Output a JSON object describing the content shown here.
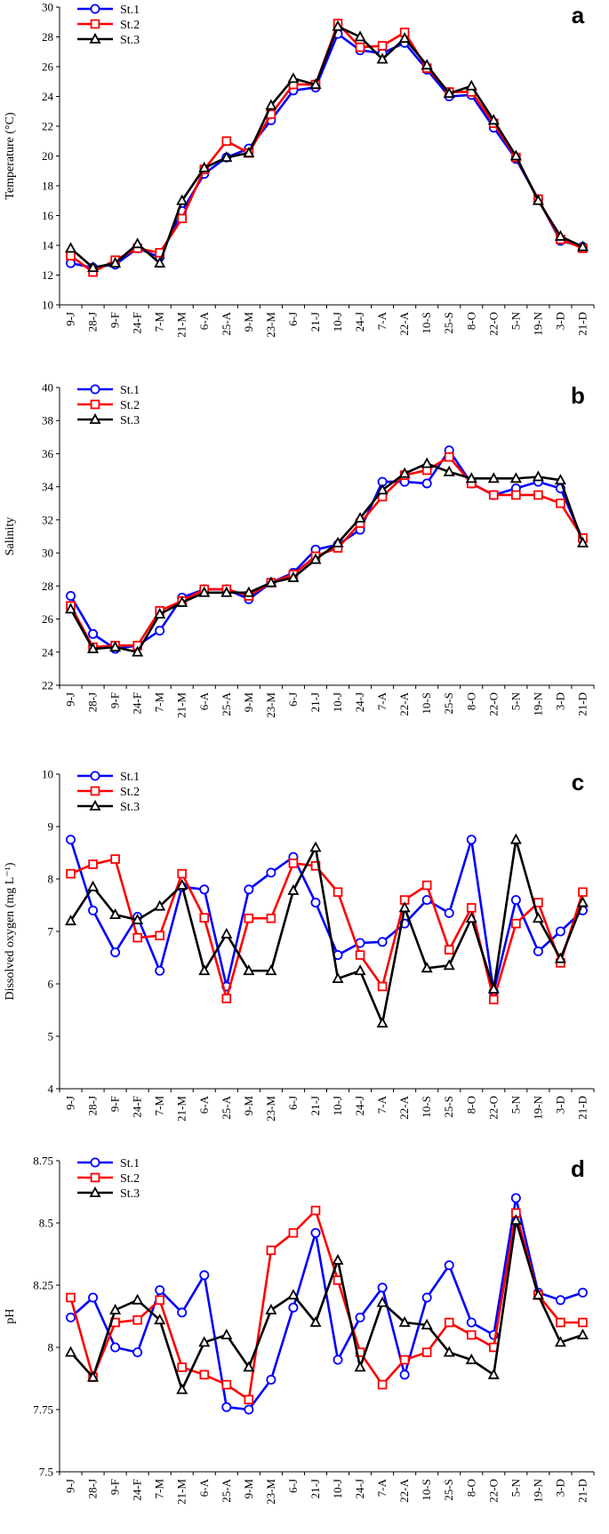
{
  "categories": [
    "9-J",
    "28-J",
    "9-F",
    "24-F",
    "7-M",
    "21-M",
    "6-A",
    "25-A",
    "9-M",
    "23-M",
    "6-J",
    "21-J",
    "10-J",
    "24-J",
    "7-A",
    "22-A",
    "10-S",
    "25-S",
    "8-O",
    "22-O",
    "5-N",
    "19-N",
    "3-D",
    "21-D"
  ],
  "series_styles": [
    {
      "name": "St.1",
      "color": "#0000ff",
      "marker": "circle"
    },
    {
      "name": "St.2",
      "color": "#ff0000",
      "marker": "square"
    },
    {
      "name": "St.3",
      "color": "#000000",
      "marker": "triangle"
    }
  ],
  "chart_data": [
    {
      "type": "line",
      "panel": "a",
      "title": "",
      "xlabel": "",
      "ylabel": "Temperature (°C)",
      "ylim": [
        10,
        30
      ],
      "ytick_labels": [
        "10",
        "12",
        "14",
        "16",
        "18",
        "20",
        "22",
        "24",
        "26",
        "28",
        "30"
      ],
      "legend": "top-left",
      "series": [
        {
          "name": "St.1",
          "values": [
            12.8,
            12.5,
            12.7,
            13.8,
            13.2,
            16.3,
            18.8,
            19.9,
            20.5,
            22.4,
            24.4,
            24.6,
            28.2,
            27.1,
            26.9,
            27.6,
            25.8,
            24.0,
            24.1,
            21.9,
            19.8,
            17.1,
            14.3,
            13.9
          ]
        },
        {
          "name": "St.2",
          "values": [
            13.3,
            12.2,
            13.0,
            13.8,
            13.5,
            15.8,
            19.1,
            21.0,
            20.2,
            22.8,
            24.8,
            24.8,
            28.9,
            27.3,
            27.4,
            28.3,
            25.9,
            24.3,
            24.3,
            22.2,
            19.9,
            17.1,
            14.4,
            13.8
          ]
        },
        {
          "name": "St.3",
          "values": [
            13.8,
            12.5,
            12.8,
            14.1,
            12.8,
            17.0,
            19.2,
            19.9,
            20.2,
            23.4,
            25.2,
            24.8,
            28.7,
            28.0,
            26.5,
            27.9,
            26.1,
            24.2,
            24.7,
            22.4,
            20.0,
            17.0,
            14.6,
            13.9
          ]
        }
      ]
    },
    {
      "type": "line",
      "panel": "b",
      "title": "",
      "xlabel": "",
      "ylabel": "Salinity",
      "ylim": [
        22,
        40
      ],
      "ytick_labels": [
        "22",
        "24",
        "26",
        "28",
        "30",
        "32",
        "34",
        "36",
        "38",
        "40"
      ],
      "legend": "top-left",
      "series": [
        {
          "name": "St.1",
          "values": [
            27.4,
            25.1,
            24.2,
            24.4,
            25.3,
            27.3,
            27.8,
            27.8,
            27.2,
            28.2,
            28.8,
            30.2,
            30.5,
            31.4,
            34.3,
            34.3,
            34.2,
            36.2,
            34.2,
            33.5,
            33.9,
            34.3,
            33.9,
            30.8
          ]
        },
        {
          "name": "St.2",
          "values": [
            26.8,
            24.3,
            24.4,
            24.4,
            26.5,
            27.1,
            27.8,
            27.8,
            27.4,
            28.2,
            28.7,
            29.8,
            30.3,
            31.8,
            33.4,
            34.7,
            35.0,
            35.8,
            34.2,
            33.5,
            33.5,
            33.5,
            33.0,
            30.9
          ]
        },
        {
          "name": "St.3",
          "values": [
            26.6,
            24.2,
            24.3,
            24.0,
            26.3,
            27.0,
            27.6,
            27.6,
            27.6,
            28.2,
            28.5,
            29.6,
            30.6,
            32.1,
            33.8,
            34.8,
            35.4,
            34.9,
            34.5,
            34.5,
            34.5,
            34.6,
            34.4,
            30.6
          ]
        }
      ]
    },
    {
      "type": "line",
      "panel": "c",
      "title": "",
      "xlabel": "",
      "ylabel": "Dissolved oxygen (mg L⁻¹)",
      "ylim": [
        4,
        10
      ],
      "ytick_labels": [
        "4",
        "5",
        "6",
        "7",
        "8",
        "9",
        "10"
      ],
      "legend": "top-left",
      "series": [
        {
          "name": "St.1",
          "values": [
            8.75,
            7.4,
            6.6,
            7.28,
            6.25,
            7.85,
            7.8,
            5.95,
            7.8,
            8.12,
            8.42,
            7.55,
            6.55,
            6.78,
            6.8,
            7.15,
            7.6,
            7.35,
            8.75,
            5.85,
            7.6,
            6.62,
            7.0,
            7.4
          ]
        },
        {
          "name": "St.2",
          "values": [
            8.1,
            8.28,
            8.38,
            6.88,
            6.92,
            8.1,
            7.26,
            5.72,
            7.25,
            7.25,
            8.3,
            8.25,
            7.75,
            6.55,
            5.95,
            7.6,
            7.88,
            6.65,
            7.45,
            5.7,
            7.15,
            7.55,
            6.4,
            7.75
          ]
        },
        {
          "name": "St.3",
          "values": [
            7.2,
            7.85,
            7.32,
            7.22,
            7.48,
            7.88,
            6.25,
            6.95,
            6.25,
            6.25,
            7.78,
            8.6,
            6.1,
            6.25,
            5.25,
            7.45,
            6.3,
            6.35,
            7.25,
            5.9,
            8.75,
            7.25,
            6.48,
            7.55
          ]
        }
      ]
    },
    {
      "type": "line",
      "panel": "d",
      "title": "",
      "xlabel": "",
      "ylabel": "pH",
      "ylim": [
        7.5,
        8.75
      ],
      "ytick_labels": [
        "7.5",
        "7.75",
        "8",
        "8.25",
        "8.5",
        "8.75"
      ],
      "legend": "top-left",
      "series": [
        {
          "name": "St.1",
          "values": [
            8.12,
            8.2,
            8.0,
            7.98,
            8.23,
            8.14,
            8.29,
            7.76,
            7.75,
            7.87,
            8.16,
            8.46,
            7.95,
            8.12,
            8.24,
            7.89,
            8.2,
            8.33,
            8.1,
            8.05,
            8.6,
            8.22,
            8.19,
            8.22
          ]
        },
        {
          "name": "St.2",
          "values": [
            8.2,
            7.88,
            8.1,
            8.11,
            8.19,
            7.92,
            7.89,
            7.85,
            7.79,
            8.39,
            8.46,
            8.55,
            8.27,
            7.98,
            7.85,
            7.95,
            7.98,
            8.1,
            8.05,
            8.0,
            8.54,
            8.21,
            8.1,
            8.1
          ]
        },
        {
          "name": "St.3",
          "values": [
            7.98,
            7.88,
            8.15,
            8.19,
            8.11,
            7.83,
            8.02,
            8.05,
            7.92,
            8.15,
            8.21,
            8.1,
            8.35,
            7.92,
            8.18,
            8.1,
            8.09,
            7.98,
            7.95,
            7.89,
            8.51,
            8.21,
            8.02,
            8.05
          ]
        }
      ]
    }
  ]
}
